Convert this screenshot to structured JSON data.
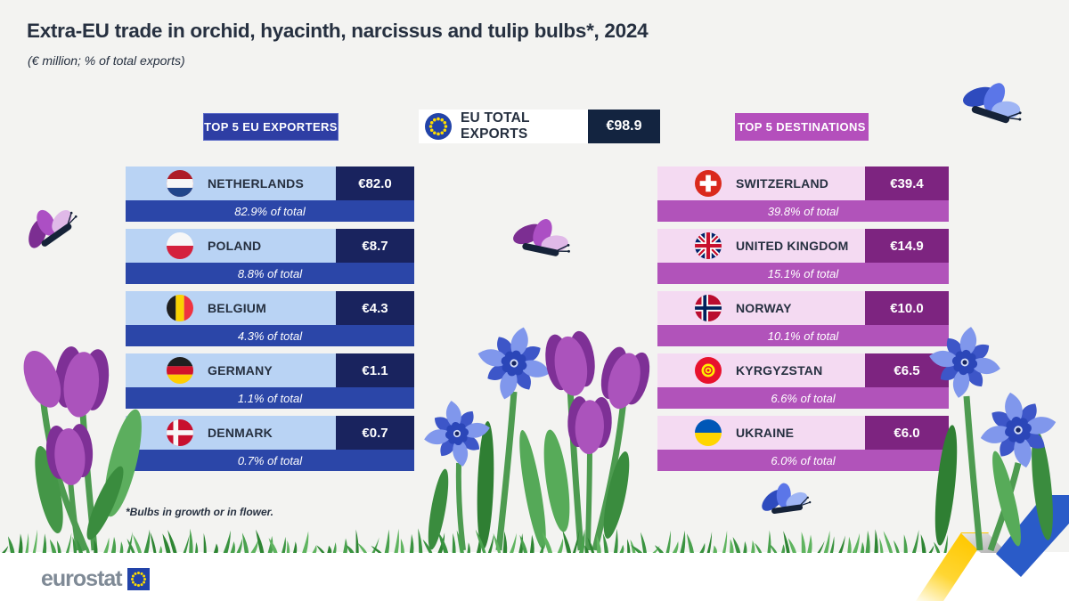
{
  "title": "Extra-EU trade in orchid, hyacinth, narcissus and tulip bulbs*, 2024",
  "subtitle": "(€ million; % of total exports)",
  "header": {
    "exporters_badge": "TOP 5 EU EXPORTERS",
    "total_label": "EU TOTAL EXPORTS",
    "total_value": "€98.9",
    "total_flag": "eu",
    "destinations_badge": "TOP 5 DESTINATIONS"
  },
  "exporters": {
    "rows": [
      {
        "country": "NETHERLANDS",
        "flag": "nl",
        "value": "€82.0",
        "share": "82.9% of total"
      },
      {
        "country": "POLAND",
        "flag": "pl",
        "value": "€8.7",
        "share": "8.8% of total"
      },
      {
        "country": "BELGIUM",
        "flag": "be",
        "value": "€4.3",
        "share": "4.3% of total"
      },
      {
        "country": "GERMANY",
        "flag": "de",
        "value": "€1.1",
        "share": "1.1% of total"
      },
      {
        "country": "DENMARK",
        "flag": "dk",
        "value": "€0.7",
        "share": "0.7% of total"
      }
    ]
  },
  "destinations": {
    "rows": [
      {
        "country": "SWITZERLAND",
        "flag": "ch",
        "value": "€39.4",
        "share": "39.8% of total"
      },
      {
        "country": "UNITED KINGDOM",
        "flag": "gb",
        "value": "€14.9",
        "share": "15.1% of total"
      },
      {
        "country": "NORWAY",
        "flag": "no",
        "value": "€10.0",
        "share": "10.1% of total"
      },
      {
        "country": "KYRGYZSTAN",
        "flag": "kg",
        "value": "€6.5",
        "share": "6.6% of total"
      },
      {
        "country": "UKRAINE",
        "flag": "ua",
        "value": "€6.0",
        "share": "6.0% of total"
      }
    ]
  },
  "footnote": "*Bulbs in growth or in flower.",
  "logo": {
    "text": "eurostat",
    "flag": "eu"
  },
  "colors": {
    "background": "#F3F3F1",
    "text_dark": "#263040",
    "exporter_badge": "#2E3EA4",
    "exporter_name_bg": "#B9D3F4",
    "exporter_value_bg": "#19235E",
    "exporter_share_bg": "#2B46A8",
    "destination_badge": "#B44FBC",
    "destination_name_bg": "#F4DAF2",
    "destination_value_bg": "#7D2480",
    "destination_share_bg": "#B153BA",
    "total_value_bg": "#132440"
  },
  "chart_data": [
    {
      "type": "table",
      "title": "Top 5 EU exporters",
      "categories": [
        "Netherlands",
        "Poland",
        "Belgium",
        "Germany",
        "Denmark"
      ],
      "values": [
        82.0,
        8.7,
        4.3,
        1.1,
        0.7
      ],
      "share_pct_of_total": [
        82.9,
        8.8,
        4.3,
        1.1,
        0.7
      ],
      "unit": "€ million"
    },
    {
      "type": "table",
      "title": "Top 5 destinations",
      "categories": [
        "Switzerland",
        "United Kingdom",
        "Norway",
        "Kyrgyzstan",
        "Ukraine"
      ],
      "values": [
        39.4,
        14.9,
        10.0,
        6.5,
        6.0
      ],
      "share_pct_of_total": [
        39.8,
        15.1,
        10.1,
        6.6,
        6.0
      ],
      "unit": "€ million"
    },
    {
      "type": "value",
      "title": "EU total exports",
      "value": 98.9,
      "unit": "€ million"
    }
  ]
}
